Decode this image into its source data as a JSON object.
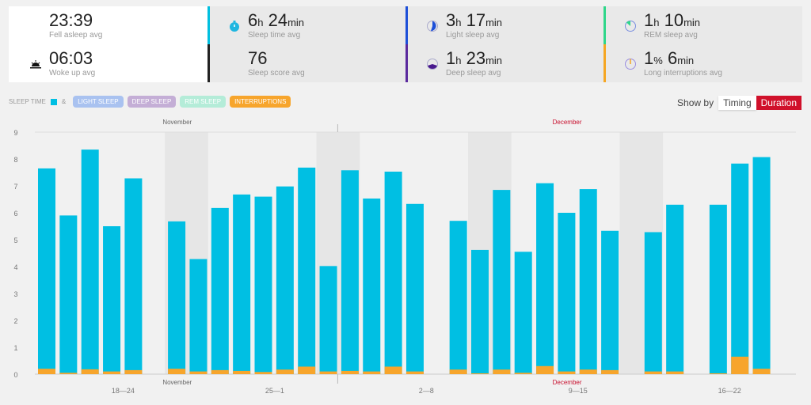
{
  "stats": [
    {
      "value": "23:39",
      "label": "Fell asleep avg",
      "icon": "moon-icon",
      "color": "#ffffff"
    },
    {
      "value": "06:03",
      "label": "Woke up avg",
      "icon": "sunrise-icon"
    },
    {
      "v1": "6",
      "u1": "h",
      "v2": "24",
      "u2": "min",
      "label": "Sleep time avg",
      "icon": "stopwatch-icon",
      "color": "#00bfdf"
    },
    {
      "value": "76",
      "label": "Sleep score avg",
      "color": "#222222"
    },
    {
      "v1": "3",
      "u1": "h",
      "v2": "17",
      "u2": "min",
      "label": "Light sleep avg",
      "icon": "light-sleep-pie-icon",
      "color": "#1d4fd8"
    },
    {
      "v1": "1",
      "u1": "h",
      "v2": "23",
      "u2": "min",
      "label": "Deep sleep avg",
      "icon": "deep-sleep-pie-icon",
      "color": "#5b2a9e"
    },
    {
      "v1": "1",
      "u1": "h",
      "v2": "10",
      "u2": "min",
      "label": "REM sleep avg",
      "icon": "rem-sleep-pie-icon",
      "color": "#2fd68a"
    },
    {
      "v1": "1",
      "u1": "%",
      "v2": "6",
      "u2": "min",
      "label": "Long interruptions avg",
      "icon": "interruptions-pie-icon",
      "color": "#f5a623"
    }
  ],
  "legend": {
    "sleep_time": "SLEEP TIME",
    "amp": "&",
    "chips": [
      {
        "label": "LIGHT SLEEP",
        "color": "#a9c2f0"
      },
      {
        "label": "DEEP SLEEP",
        "color": "#c4aed6"
      },
      {
        "label": "REM SLEEP",
        "color": "#b4ecd8"
      },
      {
        "label": "INTERRUPTIONS",
        "color": "#f7a52c"
      }
    ]
  },
  "show_by": {
    "label": "Show by",
    "timing": "Timing",
    "duration": "Duration"
  },
  "chart_data": {
    "type": "bar",
    "ylim": [
      0,
      9
    ],
    "yticks": [
      0,
      1,
      2,
      3,
      4,
      5,
      6,
      7,
      8,
      9
    ],
    "series": [
      {
        "name": "Sleep time",
        "color": "#00bfe3",
        "values": [
          7.65,
          5.9,
          8.35,
          5.5,
          7.28,
          null,
          5.68,
          4.28,
          6.18,
          6.68,
          6.6,
          6.98,
          7.68,
          4.02,
          7.58,
          6.53,
          7.53,
          6.33,
          null,
          5.7,
          4.62,
          6.85,
          4.55,
          7.1,
          6.0,
          6.88,
          5.33,
          null,
          5.28,
          6.3,
          null,
          6.3,
          7.83,
          8.07
        ]
      },
      {
        "name": "Interruptions",
        "color": "#f7a52c",
        "values": [
          0.2,
          0.05,
          0.18,
          0.1,
          0.15,
          null,
          0.2,
          0.1,
          0.15,
          0.12,
          0.08,
          0.17,
          0.28,
          0.1,
          0.12,
          0.1,
          0.28,
          0.1,
          null,
          0.17,
          0.03,
          0.17,
          0.05,
          0.3,
          0.1,
          0.17,
          0.15,
          null,
          0.1,
          0.1,
          null,
          0.03,
          0.65,
          0.2
        ]
      }
    ],
    "weekends": [
      6,
      13,
      20,
      27
    ],
    "week_labels": [
      {
        "label": "18—24",
        "index": 4
      },
      {
        "label": "25—1",
        "index": 11
      },
      {
        "label": "2—8",
        "index": 18
      },
      {
        "label": "9—15",
        "index": 25
      },
      {
        "label": "16—22",
        "index": 32
      }
    ],
    "months": [
      {
        "label": "November",
        "index": 6.5,
        "color": "#666666"
      },
      {
        "label": "December",
        "index": 24.5,
        "color": "#c8102e"
      }
    ],
    "month_divider": 14
  }
}
